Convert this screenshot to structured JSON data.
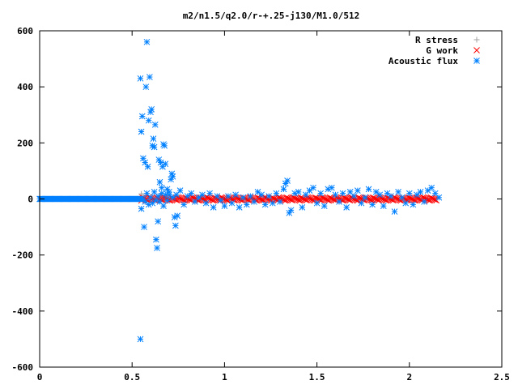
{
  "chart_data": {
    "type": "scatter",
    "title": "m2/n1.5/q2.0/r-+.25-j130/M1.0/512",
    "xlabel": "",
    "ylabel": "",
    "xlim": [
      0,
      2.5
    ],
    "ylim": [
      -600,
      600
    ],
    "x_ticks": [
      "0",
      "0.5",
      "1",
      "1.5",
      "2",
      "2.5"
    ],
    "y_ticks": [
      "600",
      "400",
      "200",
      "0",
      "-200",
      "-400",
      "-600"
    ],
    "grid": false,
    "legend_position": "top-right",
    "series": [
      {
        "name": "R stress",
        "marker": "plus",
        "color": "#a0a0a0",
        "points": [
          [
            0.55,
            18
          ],
          [
            0.56,
            10
          ],
          [
            0.58,
            -6
          ],
          [
            0.6,
            8
          ],
          [
            0.62,
            -4
          ],
          [
            0.65,
            6
          ],
          [
            0.68,
            -5
          ],
          [
            0.7,
            4
          ],
          [
            0.75,
            3
          ],
          [
            0.8,
            -2
          ],
          [
            0.9,
            3
          ],
          [
            1.0,
            -2
          ],
          [
            1.1,
            2
          ],
          [
            1.2,
            -2
          ],
          [
            1.3,
            2
          ],
          [
            1.4,
            -2
          ],
          [
            1.5,
            2
          ],
          [
            1.6,
            -2
          ],
          [
            1.7,
            2
          ],
          [
            1.8,
            -2
          ],
          [
            1.9,
            2
          ],
          [
            2.0,
            -2
          ],
          [
            2.1,
            2
          ],
          [
            2.15,
            1
          ]
        ]
      },
      {
        "name": "G work",
        "marker": "cross",
        "color": "#ff0000",
        "band": {
          "x_start": 0.55,
          "x_end": 2.15,
          "y_min": -6,
          "y_max": 6
        }
      },
      {
        "name": "Acoustic flux",
        "marker": "star",
        "color": "#0080ff",
        "flat_band": {
          "x_start": 0.0,
          "x_end": 0.55,
          "y": 0
        },
        "points": [
          [
            0.545,
            430
          ],
          [
            0.55,
            240
          ],
          [
            0.555,
            295
          ],
          [
            0.56,
            145
          ],
          [
            0.565,
            -100
          ],
          [
            0.57,
            130
          ],
          [
            0.575,
            400
          ],
          [
            0.58,
            560
          ],
          [
            0.585,
            115
          ],
          [
            0.59,
            280
          ],
          [
            0.595,
            435
          ],
          [
            0.6,
            310
          ],
          [
            0.605,
            320
          ],
          [
            0.61,
            190
          ],
          [
            0.615,
            215
          ],
          [
            0.62,
            185
          ],
          [
            0.625,
            265
          ],
          [
            0.63,
            -145
          ],
          [
            0.635,
            -175
          ],
          [
            0.64,
            -80
          ],
          [
            0.645,
            140
          ],
          [
            0.65,
            60
          ],
          [
            0.655,
            130
          ],
          [
            0.66,
            40
          ],
          [
            0.665,
            115
          ],
          [
            0.67,
            195
          ],
          [
            0.675,
            190
          ],
          [
            0.68,
            125
          ],
          [
            0.69,
            35
          ],
          [
            0.7,
            15
          ],
          [
            0.71,
            70
          ],
          [
            0.715,
            90
          ],
          [
            0.72,
            80
          ],
          [
            0.73,
            -65
          ],
          [
            0.735,
            -95
          ],
          [
            0.745,
            -60
          ],
          [
            0.545,
            -500
          ],
          [
            0.55,
            -35
          ],
          [
            0.56,
            0
          ],
          [
            0.57,
            -10
          ],
          [
            0.58,
            20
          ],
          [
            0.59,
            -20
          ],
          [
            0.6,
            5
          ],
          [
            0.61,
            -15
          ],
          [
            0.62,
            25
          ],
          [
            0.63,
            -5
          ],
          [
            0.64,
            10
          ],
          [
            0.65,
            -10
          ],
          [
            0.66,
            20
          ],
          [
            0.67,
            -25
          ],
          [
            0.68,
            15
          ],
          [
            0.69,
            -5
          ],
          [
            0.7,
            25
          ],
          [
            0.72,
            5
          ],
          [
            0.74,
            15
          ],
          [
            0.76,
            30
          ],
          [
            0.78,
            -20
          ],
          [
            0.8,
            10
          ],
          [
            0.82,
            20
          ],
          [
            0.84,
            -10
          ],
          [
            0.86,
            5
          ],
          [
            0.88,
            15
          ],
          [
            0.9,
            -15
          ],
          [
            0.92,
            20
          ],
          [
            0.94,
            -30
          ],
          [
            0.96,
            10
          ],
          [
            0.98,
            -5
          ],
          [
            1.0,
            -25
          ],
          [
            1.02,
            10
          ],
          [
            1.04,
            -15
          ],
          [
            1.06,
            15
          ],
          [
            1.08,
            -30
          ],
          [
            1.1,
            5
          ],
          [
            1.12,
            -20
          ],
          [
            1.14,
            10
          ],
          [
            1.16,
            -10
          ],
          [
            1.18,
            25
          ],
          [
            1.2,
            15
          ],
          [
            1.22,
            -20
          ],
          [
            1.24,
            10
          ],
          [
            1.26,
            -15
          ],
          [
            1.28,
            20
          ],
          [
            1.3,
            -10
          ],
          [
            1.32,
            35
          ],
          [
            1.33,
            55
          ],
          [
            1.34,
            65
          ],
          [
            1.35,
            -50
          ],
          [
            1.36,
            -40
          ],
          [
            1.38,
            20
          ],
          [
            1.4,
            25
          ],
          [
            1.42,
            -30
          ],
          [
            1.44,
            15
          ],
          [
            1.46,
            30
          ],
          [
            1.48,
            40
          ],
          [
            1.5,
            -15
          ],
          [
            1.52,
            20
          ],
          [
            1.54,
            -25
          ],
          [
            1.56,
            35
          ],
          [
            1.58,
            40
          ],
          [
            1.6,
            15
          ],
          [
            1.62,
            -10
          ],
          [
            1.64,
            20
          ],
          [
            1.66,
            -30
          ],
          [
            1.68,
            25
          ],
          [
            1.7,
            10
          ],
          [
            1.72,
            30
          ],
          [
            1.74,
            -15
          ],
          [
            1.76,
            5
          ],
          [
            1.78,
            35
          ],
          [
            1.8,
            -20
          ],
          [
            1.82,
            25
          ],
          [
            1.84,
            15
          ],
          [
            1.86,
            -25
          ],
          [
            1.88,
            20
          ],
          [
            1.9,
            10
          ],
          [
            1.92,
            -45
          ],
          [
            1.94,
            25
          ],
          [
            1.96,
            5
          ],
          [
            1.98,
            -15
          ],
          [
            2.0,
            20
          ],
          [
            2.02,
            -20
          ],
          [
            2.04,
            15
          ],
          [
            2.06,
            25
          ],
          [
            2.08,
            -10
          ],
          [
            2.1,
            30
          ],
          [
            2.12,
            40
          ],
          [
            2.14,
            20
          ],
          [
            2.16,
            5
          ]
        ]
      }
    ]
  }
}
